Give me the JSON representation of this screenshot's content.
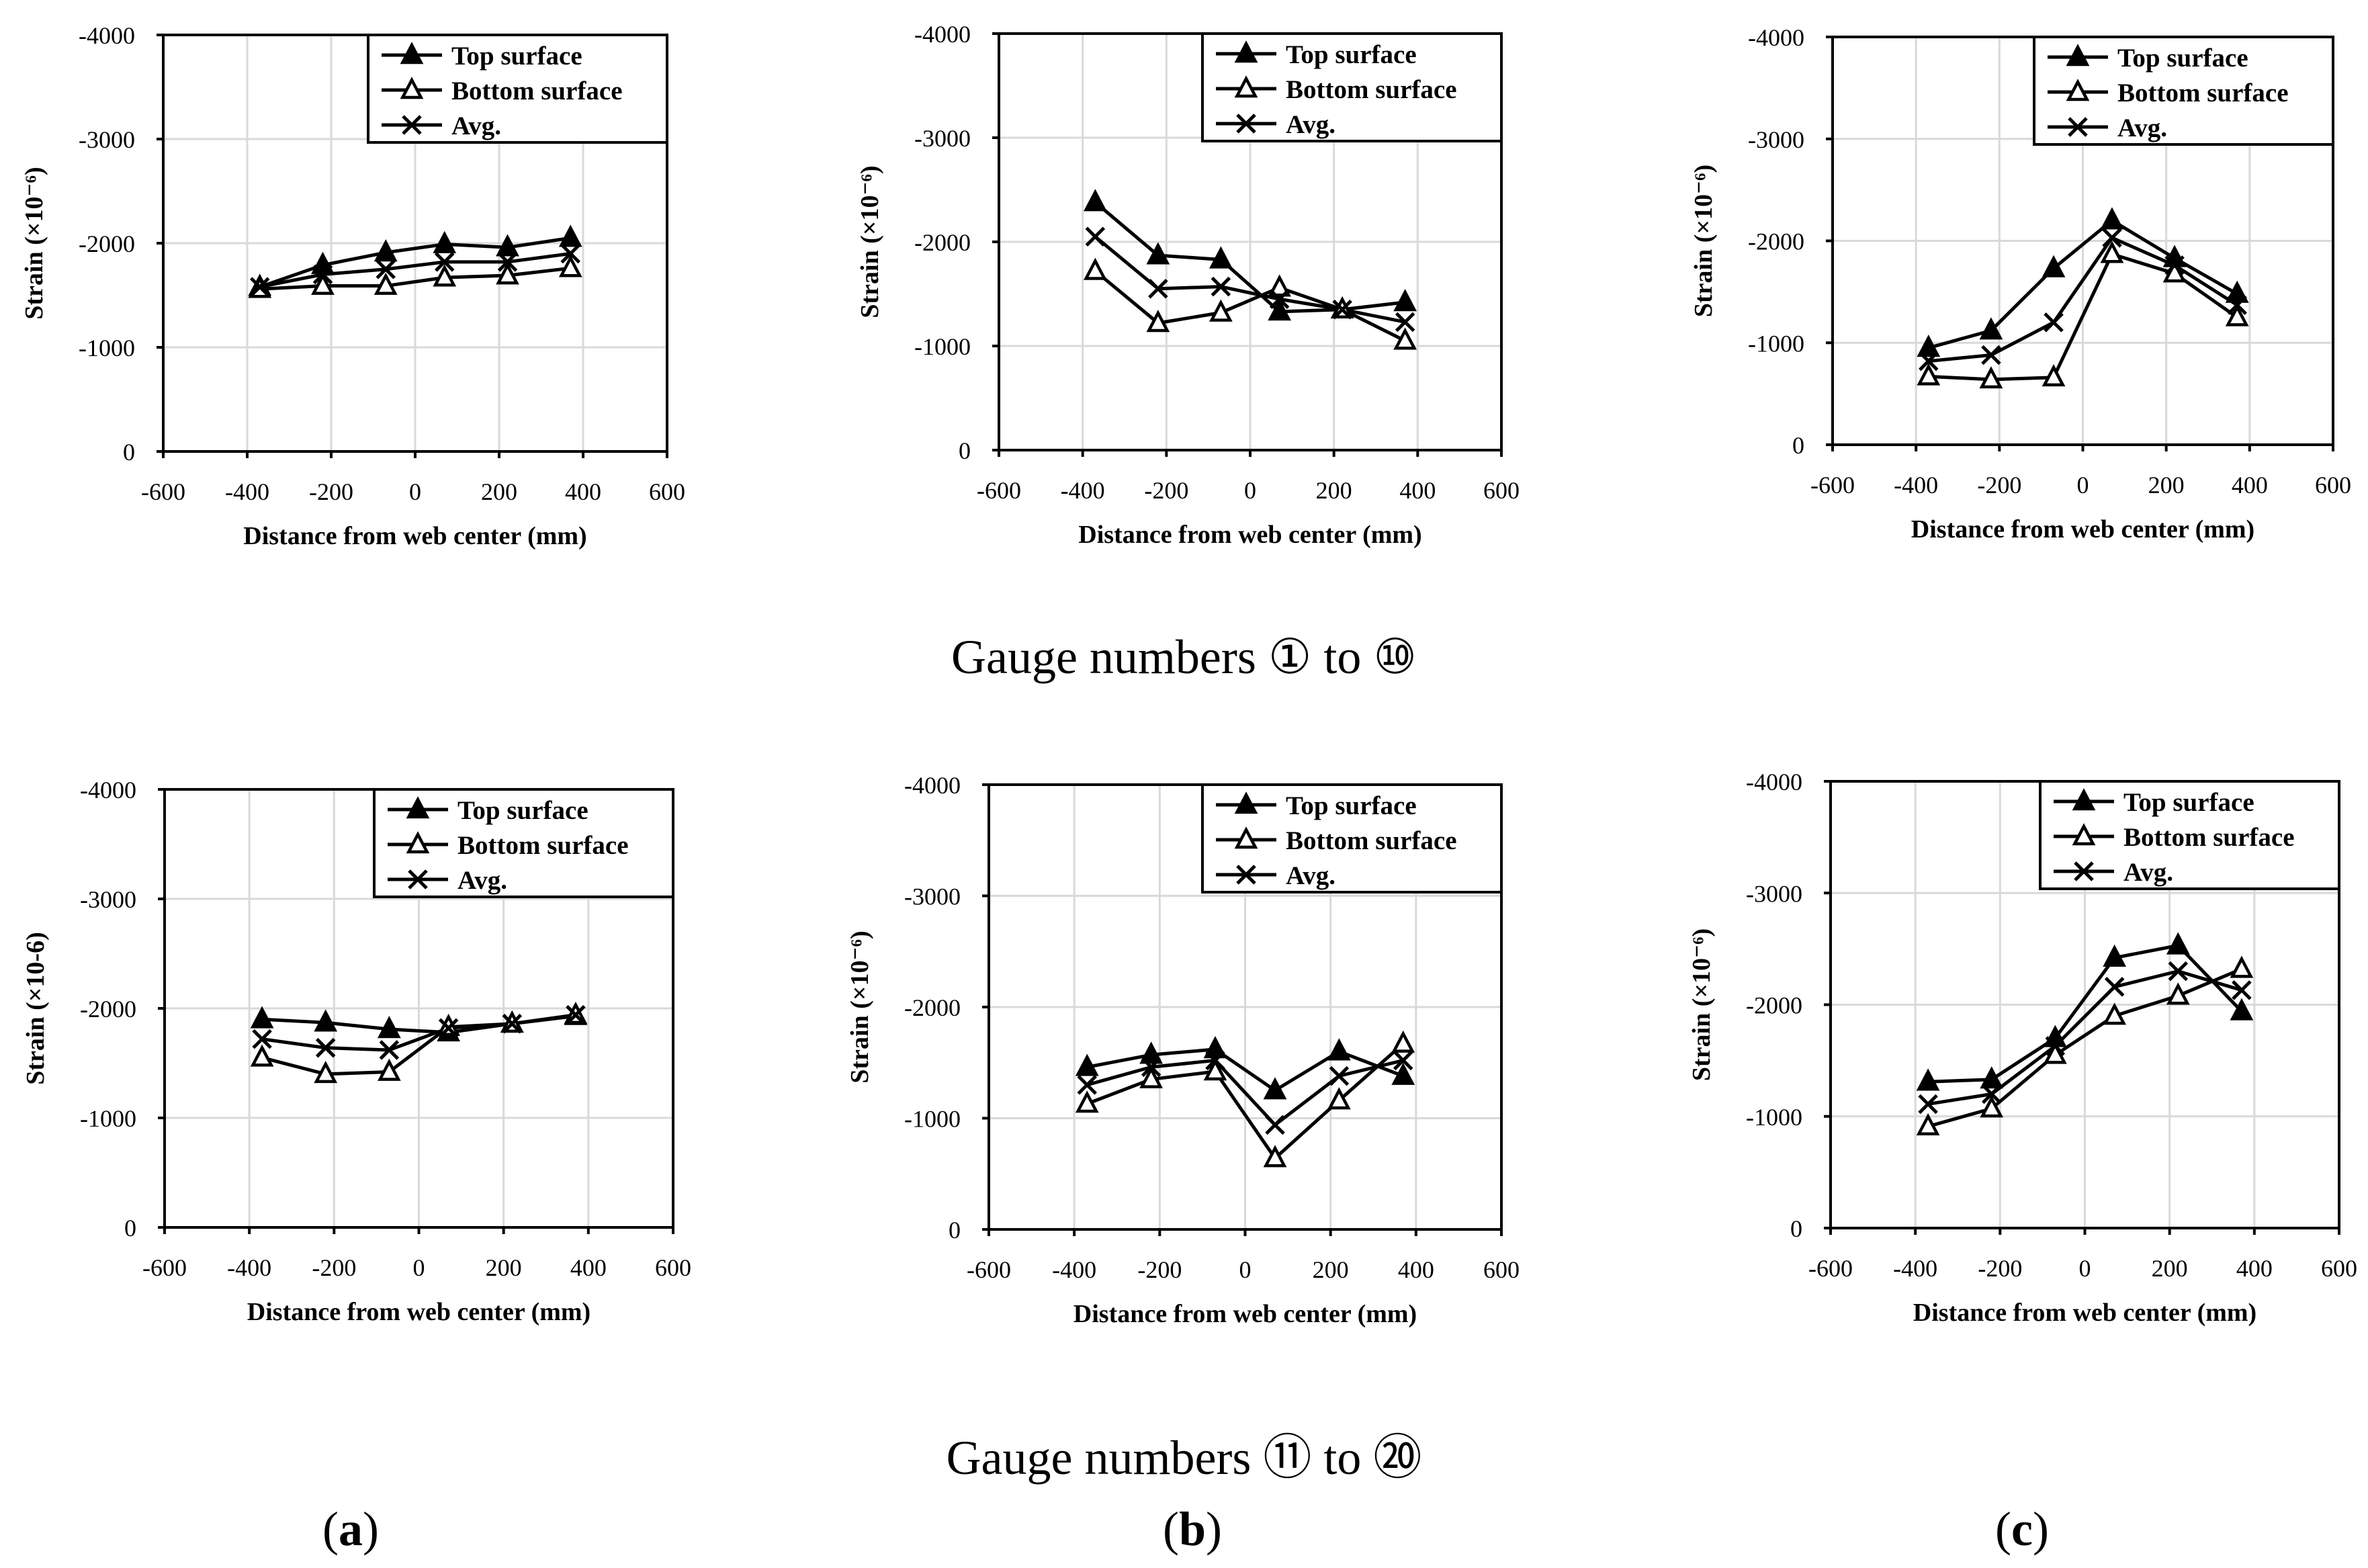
{
  "captions": {
    "row1": "Gauge numbers ① to ⑩",
    "row2": "Gauge numbers ⑪ to ⑳"
  },
  "panel_labels": [
    "a",
    "b",
    "c"
  ],
  "style": {
    "line_color": "#000000",
    "grid_color": "#d9d9d9",
    "background": "#ffffff"
  },
  "chart_data": [
    {
      "type": "line",
      "panel": "a",
      "row": 1,
      "xlabel": "Distance from web center (mm)",
      "ylabel": "Strain (×10⁻⁶)",
      "xlim": [
        -600,
        600
      ],
      "ylim": [
        0,
        -4000
      ],
      "xticks": [
        -600,
        -400,
        -200,
        0,
        200,
        400,
        600
      ],
      "yticks": [
        0,
        -1000,
        -2000,
        -3000,
        -4000
      ],
      "legend_position": "top-right",
      "x": [
        -370,
        -220,
        -70,
        70,
        220,
        370
      ],
      "series": [
        {
          "name": "Top surface",
          "marker": "filled-triangle",
          "values": [
            -1580,
            -1790,
            -1910,
            -1990,
            -1960,
            -2050
          ]
        },
        {
          "name": "Bottom surface",
          "marker": "open-triangle",
          "values": [
            -1560,
            -1590,
            -1590,
            -1670,
            -1690,
            -1760
          ]
        },
        {
          "name": "Avg.",
          "marker": "x",
          "values": [
            -1580,
            -1700,
            -1750,
            -1820,
            -1820,
            -1900
          ]
        }
      ]
    },
    {
      "type": "line",
      "panel": "b",
      "row": 1,
      "xlabel": "Distance from web center (mm)",
      "ylabel": "Strain (×10⁻⁶)",
      "xlim": [
        -600,
        600
      ],
      "ylim": [
        0,
        -4000
      ],
      "xticks": [
        -600,
        -400,
        -200,
        0,
        200,
        400,
        600
      ],
      "yticks": [
        0,
        -1000,
        -2000,
        -3000,
        -4000
      ],
      "legend_position": "top-right",
      "x": [
        -370,
        -220,
        -70,
        70,
        220,
        370
      ],
      "series": [
        {
          "name": "Top surface",
          "marker": "filled-triangle",
          "values": [
            -2380,
            -1870,
            -1830,
            -1330,
            -1350,
            -1420
          ]
        },
        {
          "name": "Bottom surface",
          "marker": "open-triangle",
          "values": [
            -1720,
            -1220,
            -1320,
            -1560,
            -1350,
            -1050
          ]
        },
        {
          "name": "Avg.",
          "marker": "x",
          "values": [
            -2050,
            -1550,
            -1570,
            -1450,
            -1350,
            -1230
          ]
        }
      ]
    },
    {
      "type": "line",
      "panel": "c",
      "row": 1,
      "xlabel": "Distance from web center (mm)",
      "ylabel": "Strain (×10⁻⁶)",
      "xlim": [
        -600,
        600
      ],
      "ylim": [
        0,
        -4000
      ],
      "xticks": [
        -600,
        -400,
        -200,
        0,
        200,
        400,
        600
      ],
      "yticks": [
        0,
        -1000,
        -2000,
        -3000,
        -4000
      ],
      "legend_position": "top-right",
      "x": [
        -370,
        -220,
        -70,
        70,
        220,
        370
      ],
      "series": [
        {
          "name": "Top surface",
          "marker": "filled-triangle",
          "values": [
            -950,
            -1120,
            -1730,
            -2200,
            -1830,
            -1480
          ]
        },
        {
          "name": "Bottom surface",
          "marker": "open-triangle",
          "values": [
            -670,
            -640,
            -660,
            -1870,
            -1680,
            -1250
          ]
        },
        {
          "name": "Avg.",
          "marker": "x",
          "values": [
            -820,
            -880,
            -1200,
            -2030,
            -1760,
            -1370
          ]
        }
      ]
    },
    {
      "type": "line",
      "panel": "a",
      "row": 2,
      "xlabel": "Distance from web center (mm)",
      "ylabel": "Strain (×10-6)",
      "xlim": [
        -600,
        600
      ],
      "ylim": [
        0,
        -4000
      ],
      "xticks": [
        -600,
        -400,
        -200,
        0,
        200,
        400,
        600
      ],
      "yticks": [
        0,
        -1000,
        -2000,
        -3000,
        -4000
      ],
      "legend_position": "top-right",
      "x": [
        -370,
        -220,
        -70,
        70,
        220,
        370
      ],
      "series": [
        {
          "name": "Top surface",
          "marker": "filled-triangle",
          "values": [
            -1900,
            -1870,
            -1810,
            -1780,
            -1860,
            -1930
          ]
        },
        {
          "name": "Bottom surface",
          "marker": "open-triangle",
          "values": [
            -1550,
            -1400,
            -1420,
            -1830,
            -1860,
            -1940
          ]
        },
        {
          "name": "Avg.",
          "marker": "x",
          "values": [
            -1720,
            -1640,
            -1620,
            -1820,
            -1860,
            -1940
          ]
        }
      ]
    },
    {
      "type": "line",
      "panel": "b",
      "row": 2,
      "xlabel": "Distance from web center (mm)",
      "ylabel": "Strain (×10⁻⁶)",
      "xlim": [
        -600,
        600
      ],
      "ylim": [
        0,
        -4000
      ],
      "xticks": [
        -600,
        -400,
        -200,
        0,
        200,
        400,
        600
      ],
      "yticks": [
        0,
        -1000,
        -2000,
        -3000,
        -4000
      ],
      "legend_position": "top-right",
      "x": [
        -370,
        -220,
        -70,
        70,
        220,
        370
      ],
      "series": [
        {
          "name": "Top surface",
          "marker": "filled-triangle",
          "values": [
            -1460,
            -1570,
            -1620,
            -1250,
            -1600,
            -1380
          ]
        },
        {
          "name": "Bottom surface",
          "marker": "open-triangle",
          "values": [
            -1130,
            -1350,
            -1420,
            -640,
            -1160,
            -1670
          ]
        },
        {
          "name": "Avg.",
          "marker": "x",
          "values": [
            -1300,
            -1460,
            -1520,
            -940,
            -1380,
            -1520
          ]
        }
      ]
    },
    {
      "type": "line",
      "panel": "c",
      "row": 2,
      "xlabel": "Distance from web center (mm)",
      "ylabel": "Strain (×10⁻⁶)",
      "xlim": [
        -600,
        600
      ],
      "ylim": [
        0,
        -4000
      ],
      "xticks": [
        -600,
        -400,
        -200,
        0,
        200,
        400,
        600
      ],
      "yticks": [
        0,
        -1000,
        -2000,
        -3000,
        -4000
      ],
      "legend_position": "top-right",
      "x": [
        -370,
        -220,
        -70,
        70,
        220,
        370
      ],
      "series": [
        {
          "name": "Top surface",
          "marker": "filled-triangle",
          "values": [
            -1310,
            -1330,
            -1700,
            -2420,
            -2530,
            -1940
          ]
        },
        {
          "name": "Bottom surface",
          "marker": "open-triangle",
          "values": [
            -910,
            -1070,
            -1550,
            -1900,
            -2080,
            -2320
          ]
        },
        {
          "name": "Avg.",
          "marker": "x",
          "values": [
            -1110,
            -1200,
            -1630,
            -2160,
            -2300,
            -2130
          ]
        }
      ]
    }
  ]
}
